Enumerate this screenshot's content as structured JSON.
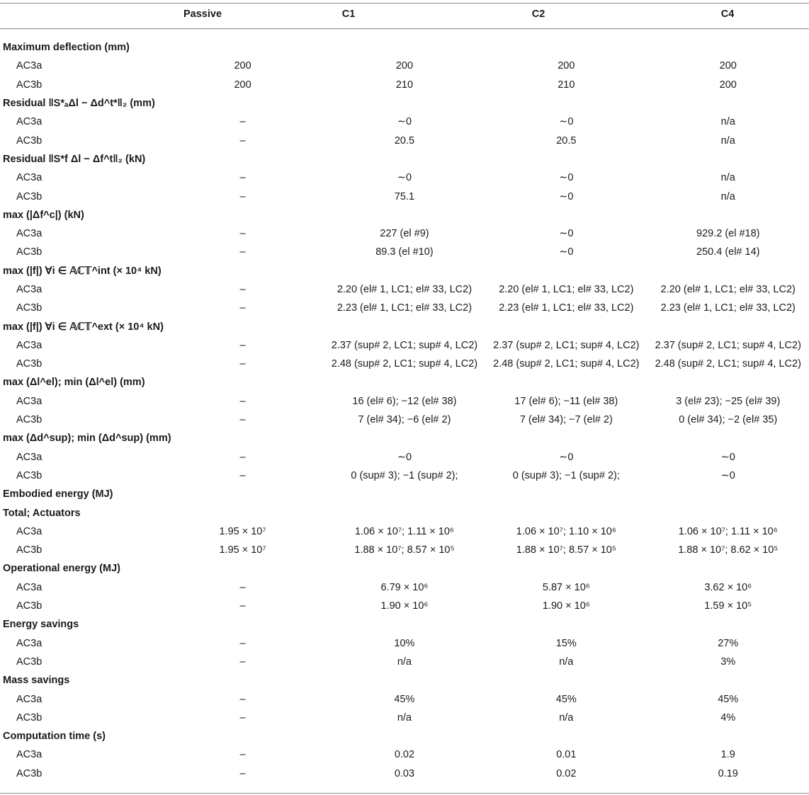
{
  "columns": [
    "",
    "Passive",
    "C1",
    "C2",
    "C4"
  ],
  "sections": [
    {
      "title": "Maximum deflection (mm)",
      "rows": [
        {
          "label": "AC3a",
          "cells": [
            "200",
            "200",
            "200",
            "200"
          ]
        },
        {
          "label": "AC3b",
          "cells": [
            "200",
            "210",
            "210",
            "200"
          ]
        }
      ]
    },
    {
      "title": "Residual ‖S*ₐΔl − Δd^t*‖₂ (mm)",
      "rows": [
        {
          "label": "AC3a",
          "cells": [
            "–",
            "∼0",
            "∼0",
            "n/a"
          ]
        },
        {
          "label": "AC3b",
          "cells": [
            "–",
            "20.5",
            "20.5",
            "n/a"
          ]
        }
      ]
    },
    {
      "title": "Residual ‖S*f Δl − Δf^t‖₂ (kN)",
      "rows": [
        {
          "label": "AC3a",
          "cells": [
            "–",
            "∼0",
            "∼0",
            "n/a"
          ]
        },
        {
          "label": "AC3b",
          "cells": [
            "–",
            "75.1",
            "∼0",
            "n/a"
          ]
        }
      ]
    },
    {
      "title": "max (|Δf^c|) (kN)",
      "rows": [
        {
          "label": "AC3a",
          "cells": [
            "–",
            "227 (el #9)",
            "∼0",
            "929.2 (el #18)"
          ]
        },
        {
          "label": "AC3b",
          "cells": [
            "–",
            "89.3 (el #10)",
            "∼0",
            "250.4 (el# 14)"
          ]
        }
      ]
    },
    {
      "title": "max (|f|) ∀i ∈ 𝔸ℂ𝕋^int (× 10⁴ kN)",
      "rows": [
        {
          "label": "AC3a",
          "cells": [
            "–",
            "2.20 (el# 1, LC1; el# 33, LC2)",
            "2.20 (el# 1, LC1; el# 33, LC2)",
            "2.20 (el# 1, LC1; el# 33, LC2)"
          ]
        },
        {
          "label": "AC3b",
          "cells": [
            "–",
            "2.23 (el# 1, LC1; el# 33, LC2)",
            "2.23 (el# 1, LC1; el# 33, LC2)",
            "2.23 (el# 1, LC1; el# 33, LC2)"
          ]
        }
      ]
    },
    {
      "title": "max (|f|) ∀i ∈ 𝔸ℂ𝕋^ext (× 10⁴ kN)",
      "rows": [
        {
          "label": "AC3a",
          "cells": [
            "–",
            "2.37 (sup# 2, LC1; sup# 4, LC2)",
            "2.37 (sup# 2, LC1; sup# 4, LC2)",
            "2.37 (sup# 2, LC1; sup# 4, LC2)"
          ]
        },
        {
          "label": "AC3b",
          "cells": [
            "–",
            "2.48 (sup# 2, LC1; sup# 4, LC2)",
            "2.48 (sup# 2, LC1; sup# 4, LC2)",
            "2.48 (sup# 2, LC1; sup# 4, LC2)"
          ]
        }
      ]
    },
    {
      "title": "max (Δl^el); min (Δl^el) (mm)",
      "rows": [
        {
          "label": "AC3a",
          "cells": [
            "–",
            "16 (el# 6); −12 (el# 38)",
            "17 (el# 6); −11 (el# 38)",
            "3 (el# 23); −25 (el# 39)"
          ]
        },
        {
          "label": "AC3b",
          "cells": [
            "–",
            "7 (el# 34); −6 (el# 2)",
            "7 (el# 34); −7 (el# 2)",
            "0 (el# 34); −2 (el# 35)"
          ]
        }
      ]
    },
    {
      "title": "max (Δd^sup); min (Δd^sup) (mm)",
      "rows": [
        {
          "label": "AC3a",
          "cells": [
            "–",
            "∼0",
            "∼0",
            "∼0"
          ]
        },
        {
          "label": "AC3b",
          "cells": [
            "–",
            "0 (sup# 3); −1 (sup# 2);",
            "0 (sup# 3); −1 (sup# 2);",
            "∼0"
          ]
        }
      ]
    },
    {
      "title": "Embodied energy (MJ)",
      "rows": []
    },
    {
      "title": "Total; Actuators",
      "rows": [
        {
          "label": "AC3a",
          "cells": [
            "1.95 × 10⁷",
            "1.06 × 10⁷; 1.11 × 10⁶",
            "1.06 × 10⁷; 1.10 × 10⁶",
            "1.06 × 10⁷; 1.11 × 10⁶"
          ]
        },
        {
          "label": "AC3b",
          "cells": [
            "1.95 × 10⁷",
            "1.88 × 10⁷; 8.57 × 10⁵",
            "1.88 × 10⁷; 8.57 × 10⁵",
            "1.88 × 10⁷; 8.62 × 10⁵"
          ]
        }
      ]
    },
    {
      "title": "Operational energy (MJ)",
      "rows": [
        {
          "label": "AC3a",
          "cells": [
            "–",
            "6.79 × 10⁶",
            "5.87 × 10⁶",
            "3.62 × 10⁶"
          ]
        },
        {
          "label": "AC3b",
          "cells": [
            "–",
            "1.90 × 10⁶",
            "1.90 × 10⁶",
            "1.59 × 10⁵"
          ]
        }
      ]
    },
    {
      "title": "Energy savings",
      "rows": [
        {
          "label": "AC3a",
          "cells": [
            "–",
            "10%",
            "15%",
            "27%"
          ]
        },
        {
          "label": "AC3b",
          "cells": [
            "–",
            "n/a",
            "n/a",
            "3%"
          ]
        }
      ]
    },
    {
      "title": "Mass savings",
      "rows": [
        {
          "label": "AC3a",
          "cells": [
            "–",
            "45%",
            "45%",
            "45%"
          ]
        },
        {
          "label": "AC3b",
          "cells": [
            "–",
            "n/a",
            "n/a",
            "4%"
          ]
        }
      ]
    },
    {
      "title": "Computation time (s)",
      "rows": [
        {
          "label": "AC3a",
          "cells": [
            "–",
            "0.02",
            "0.01",
            "1.9"
          ]
        },
        {
          "label": "AC3b",
          "cells": [
            "–",
            "0.03",
            "0.02",
            "0.19"
          ]
        }
      ]
    }
  ]
}
